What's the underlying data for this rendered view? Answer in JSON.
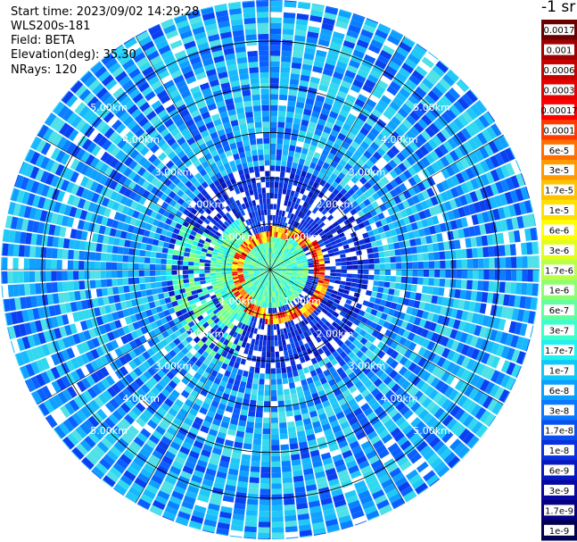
{
  "header": {
    "start_time": "Start time: 2023/09/02 14:29:28",
    "instrument": "WLS200s-181",
    "field": "Field: BETA",
    "elevation": "Elevation(deg): 35.30",
    "nrays": "NRays: 120"
  },
  "colorbar": {
    "unit_label": "-1 sr",
    "labels": [
      "0.0017",
      "0.001",
      "0.0006",
      "0.0003",
      "0.00017",
      "0.0001",
      "6e-5",
      "3e-5",
      "1.7e-5",
      "1e-5",
      "6e-6",
      "3e-6",
      "1.7e-6",
      "1e-6",
      "6e-7",
      "3e-7",
      "1.7e-7",
      "1e-7",
      "6e-8",
      "3e-8",
      "1.7e-8",
      "1e-8",
      "6e-9",
      "3e-9",
      "1.7e-9",
      "1e-9"
    ],
    "colors": [
      "#6a0000",
      "#a00000",
      "#c80000",
      "#e60000",
      "#ff0000",
      "#ff3a00",
      "#ff7000",
      "#ff9a00",
      "#ffc200",
      "#ffe000",
      "#ffff00",
      "#e0ff20",
      "#b8ff48",
      "#8cff70",
      "#62ffa0",
      "#3cffcc",
      "#20f0f0",
      "#10c8f8",
      "#0aa0ff",
      "#0a78ff",
      "#0a50f0",
      "#0a30e0",
      "#0818c0",
      "#0608a0",
      "#040080",
      "#020050"
    ]
  },
  "chart_data": {
    "type": "heatmap",
    "projection": "polar-ppi",
    "field": "BETA",
    "elevation_deg": 35.3,
    "n_rays": 120,
    "range_ring_labels": [
      "1.00km",
      "2.00km",
      "3.00km",
      "4.00km",
      "5.00km"
    ],
    "ring_ranges_km": [
      1,
      2,
      3,
      4,
      5
    ],
    "max_range_km": 5.9,
    "color_scale": "log",
    "value_range": [
      1e-09,
      0.0017
    ]
  }
}
